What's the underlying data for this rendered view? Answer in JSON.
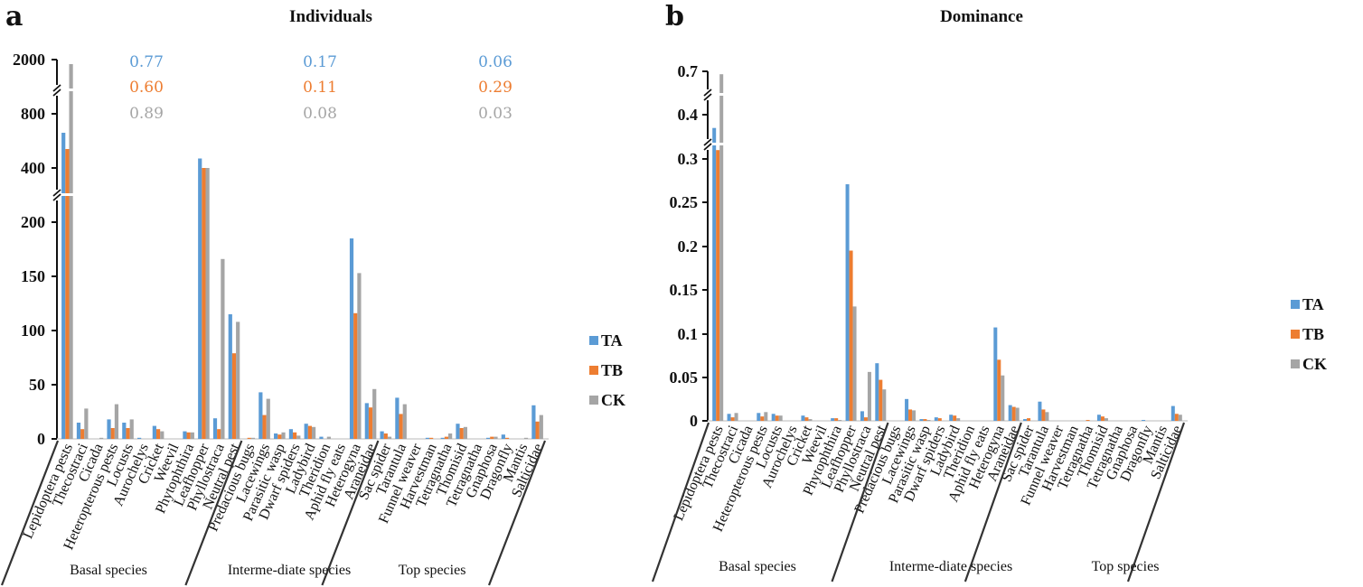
{
  "colors": {
    "TA": "#5b9bd5",
    "TB": "#ed7d31",
    "CK": "#a5a5a5"
  },
  "panels": {
    "a": "a",
    "b": "b"
  },
  "groups": [
    "Basal species",
    "Interme-diate species",
    "Top species"
  ],
  "chart_data": [
    {
      "type": "bar",
      "panel": "a",
      "title": "Individuals",
      "xlabel": "",
      "ylabel": "",
      "y_axis_broken": true,
      "y_segments": [
        [
          0,
          200
        ],
        [
          400,
          800
        ],
        [
          2000,
          2000
        ]
      ],
      "yticks": [
        "0",
        "50",
        "100",
        "150",
        "200",
        "400",
        "800",
        "2000"
      ],
      "legend_position": "right",
      "categories": [
        "Lepidoptera pests",
        "Thecostraci",
        "Cicada",
        "Heteropterous pests",
        "Locusts",
        "Aurochelys",
        "Cricket",
        "Weevil",
        "Phytophthira",
        "Leafhopper",
        "Phyllostraca",
        "Neutral pest",
        "Predacious bugs",
        "Lacewings",
        "Parasitic wasp",
        "Dwarf spiders",
        "Ladybird",
        "Theridion",
        "Aphid fly eats",
        "Heterogyna",
        "Araneidae",
        "Sac spider",
        "Tarantula",
        "Funnel weaver",
        "Harvestman",
        "Tetragnatha",
        "Thomisid",
        "Tetragnatha",
        "Gnaphosa",
        "Dragonfly",
        "Mantis",
        "Salticidae"
      ],
      "category_groups": [
        {
          "name": "Basal species",
          "count": 12
        },
        {
          "name": "Interme-diate species",
          "count": 9
        },
        {
          "name": "Top species",
          "count": 11
        }
      ],
      "series": [
        {
          "name": "TA",
          "values": [
            660,
            15,
            0,
            18,
            15,
            1,
            12,
            0,
            7,
            470,
            19,
            115,
            0,
            43,
            5,
            9,
            14,
            2,
            0,
            185,
            33,
            7,
            38,
            0,
            1,
            1,
            14,
            0,
            1,
            4,
            0,
            31
          ]
        },
        {
          "name": "TB",
          "values": [
            540,
            9,
            0,
            10,
            10,
            0,
            9,
            0,
            6,
            340,
            9,
            79,
            1,
            22,
            4,
            6,
            12,
            0,
            0,
            116,
            29,
            5,
            23,
            0,
            1,
            2,
            10,
            0,
            2,
            1,
            0,
            16
          ]
        },
        {
          "name": "CK",
          "values": [
            1900,
            28,
            1,
            32,
            18,
            0,
            7,
            0,
            6,
            390,
            166,
            108,
            1,
            37,
            6,
            3,
            11,
            2,
            0,
            153,
            46,
            2,
            32,
            0,
            0,
            5,
            11,
            0,
            2,
            0,
            1,
            22
          ]
        }
      ],
      "annotations": [
        {
          "group": "Basal species",
          "TA": "0.77",
          "TB": "0.60",
          "CK": "0.89"
        },
        {
          "group": "Interme-diate species",
          "TA": "0.17",
          "TB": "0.11",
          "CK": "0.08"
        },
        {
          "group": "Top species",
          "TA": "0.06",
          "TB": "0.29",
          "CK": "0.03"
        }
      ]
    },
    {
      "type": "bar",
      "panel": "b",
      "title": "Dominance",
      "xlabel": "",
      "ylabel": "",
      "y_axis_broken": true,
      "y_segments": [
        [
          0,
          0.3
        ],
        [
          0.4,
          0.4
        ],
        [
          0.7,
          0.7
        ]
      ],
      "yticks": [
        "0",
        "0.05",
        "0.1",
        "0.15",
        "0.2",
        "0.25",
        "0.3",
        "0.4",
        "0.7"
      ],
      "legend_position": "right",
      "categories": [
        "Lepidoptera pests",
        "Thecostraci",
        "Cicada",
        "Heteropterous pests",
        "Locusts",
        "Aurochelys",
        "Cricket",
        "Weevil",
        "Phytophthira",
        "Leafhopper",
        "Phyllostraca",
        "Neutral pest",
        "Predacious bugs",
        "Lacewings",
        "Parasitic wasp",
        "Dwarf spiders",
        "Ladybird",
        "Theridion",
        "Aphid fly eats",
        "Heterogyna",
        "Araneidae",
        "Sac spider",
        "Tarantula",
        "Funnel weaver",
        "Harvestman",
        "Tetragnatha",
        "Thomisid",
        "Tetragnatha",
        "Gnaphosa",
        "Dragonfly",
        "Mantis",
        "Salticidae"
      ],
      "category_groups": [
        {
          "name": "Basal species",
          "count": 12
        },
        {
          "name": "Interme-diate species",
          "count": 9
        },
        {
          "name": "Top species",
          "count": 11
        }
      ],
      "series": [
        {
          "name": "TA",
          "values": [
            0.37,
            0.008,
            0,
            0.009,
            0.008,
            0,
            0.006,
            0,
            0.003,
            0.271,
            0.011,
            0.066,
            0,
            0.025,
            0.002,
            0.004,
            0.007,
            0,
            0,
            0.107,
            0.018,
            0.002,
            0.022,
            0,
            0,
            0,
            0.007,
            0,
            0,
            0.001,
            0,
            0.017
          ]
        },
        {
          "name": "TB",
          "values": [
            0.32,
            0.004,
            0,
            0.005,
            0.006,
            0,
            0.004,
            0,
            0.003,
            0.195,
            0.004,
            0.047,
            0,
            0.013,
            0.002,
            0.003,
            0.006,
            0,
            0,
            0.07,
            0.016,
            0.003,
            0.013,
            0,
            0,
            0.001,
            0.005,
            0,
            0,
            0,
            0,
            0.008
          ]
        },
        {
          "name": "CK",
          "values": [
            0.68,
            0.009,
            0,
            0.01,
            0.006,
            0,
            0.002,
            0,
            0.001,
            0.131,
            0.056,
            0.036,
            0,
            0.012,
            0.001,
            0,
            0.003,
            0,
            0,
            0.052,
            0.015,
            0,
            0.01,
            0,
            0,
            0,
            0.003,
            0,
            0,
            0,
            0,
            0.007
          ]
        }
      ]
    }
  ]
}
